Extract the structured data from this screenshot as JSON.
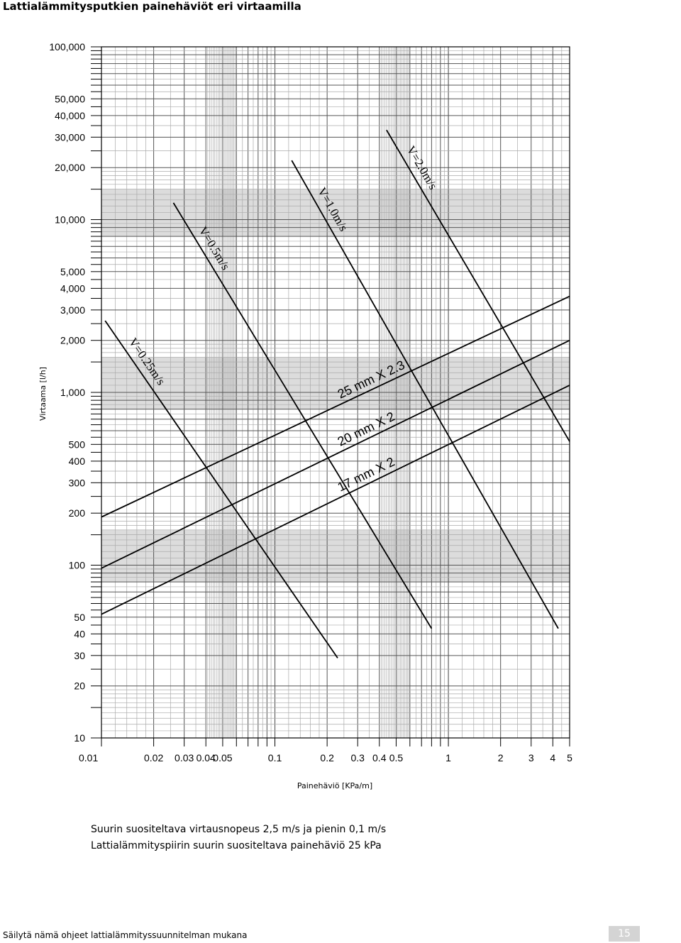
{
  "page": {
    "title": "Lattialämmitysputkien painehäviöt eri virtaamilla",
    "notes": [
      "Suurin suositeltava virtausnopeus 2,5 m/s ja pienin 0,1 m/s",
      "Lattialämmityspiirin suurin suositeltava painehäviö 25 kPa"
    ],
    "footer": "Säilytä nämä ohjeet lattialämmityssuunnitelman mukana",
    "page_number": "15"
  },
  "chart_data": {
    "type": "line",
    "xlabel": "Painehäviö [KPa/m]",
    "ylabel": "Virtaama [l/h]",
    "x_scale": "log",
    "y_scale": "log",
    "xlim": [
      0.01,
      5
    ],
    "ylim": [
      10,
      100000
    ],
    "grid": true,
    "x_ticks": [
      {
        "value": 0.01,
        "label": "0.01"
      },
      {
        "value": 0.02,
        "label": "0.02"
      },
      {
        "value": 0.03,
        "label": "0.03"
      },
      {
        "value": 0.04,
        "label": "0.04"
      },
      {
        "value": 0.05,
        "label": "0.05"
      },
      {
        "value": 0.1,
        "label": "0.1"
      },
      {
        "value": 0.2,
        "label": "0.2"
      },
      {
        "value": 0.3,
        "label": "0.3"
      },
      {
        "value": 0.4,
        "label": "0.4"
      },
      {
        "value": 0.5,
        "label": "0.5"
      },
      {
        "value": 1,
        "label": "1"
      },
      {
        "value": 2,
        "label": "2"
      },
      {
        "value": 3,
        "label": "3"
      },
      {
        "value": 4,
        "label": "4"
      },
      {
        "value": 5,
        "label": "5"
      }
    ],
    "y_ticks": [
      {
        "value": 100000,
        "label": "100,000"
      },
      {
        "value": 50000,
        "label": "50,000"
      },
      {
        "value": 40000,
        "label": "40,000"
      },
      {
        "value": 30000,
        "label": "30,000"
      },
      {
        "value": 20000,
        "label": "20,000"
      },
      {
        "value": 10000,
        "label": "10,000"
      },
      {
        "value": 5000,
        "label": "5,000"
      },
      {
        "value": 4000,
        "label": "4,000"
      },
      {
        "value": 3000,
        "label": "3,000"
      },
      {
        "value": 2000,
        "label": "2,000"
      },
      {
        "value": 1000,
        "label": "1,000"
      },
      {
        "value": 500,
        "label": "500"
      },
      {
        "value": 400,
        "label": "400"
      },
      {
        "value": 300,
        "label": "300"
      },
      {
        "value": 200,
        "label": "200"
      },
      {
        "value": 100,
        "label": "100"
      },
      {
        "value": 50,
        "label": "50"
      },
      {
        "value": 40,
        "label": "40"
      },
      {
        "value": 30,
        "label": "30"
      },
      {
        "value": 20,
        "label": "20"
      },
      {
        "value": 10,
        "label": "10"
      }
    ],
    "series": [
      {
        "name": "25 mm X 2.3",
        "kind": "pipe",
        "x": [
          0.01,
          5
        ],
        "y": [
          190,
          3600
        ]
      },
      {
        "name": "20 mm X 2",
        "kind": "pipe",
        "x": [
          0.01,
          5
        ],
        "y": [
          96,
          2000
        ]
      },
      {
        "name": "17 mm X 2",
        "kind": "pipe",
        "x": [
          0.01,
          5
        ],
        "y": [
          52,
          1100
        ]
      },
      {
        "name": "V=0.25m/s",
        "kind": "velocity",
        "x": [
          0.0105,
          0.23
        ],
        "y": [
          2600,
          29
        ]
      },
      {
        "name": "V=0.5m/s",
        "kind": "velocity",
        "x": [
          0.026,
          0.8
        ],
        "y": [
          12500,
          43
        ]
      },
      {
        "name": "V=1.0m/s",
        "kind": "velocity",
        "x": [
          0.125,
          4.3
        ],
        "y": [
          22000,
          43
        ]
      },
      {
        "name": "V=2.0m/s",
        "kind": "velocity",
        "x": [
          0.44,
          5
        ],
        "y": [
          33000,
          520
        ]
      }
    ]
  }
}
